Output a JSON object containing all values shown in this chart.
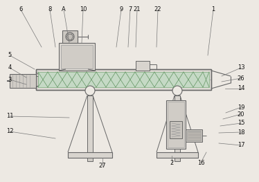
{
  "bg_color": "#ede9e3",
  "line_color": "#999999",
  "dark_color": "#666666",
  "thin_color": "#aaaaaa",
  "annotations": [
    [
      "6",
      30,
      14,
      60,
      68
    ],
    [
      "8",
      72,
      14,
      80,
      68
    ],
    [
      "A",
      92,
      14,
      100,
      62
    ],
    [
      "10",
      120,
      14,
      118,
      62
    ],
    [
      "9",
      175,
      14,
      168,
      68
    ],
    [
      "7",
      188,
      14,
      185,
      68
    ],
    [
      "21",
      198,
      14,
      196,
      68
    ],
    [
      "22",
      228,
      14,
      226,
      68
    ],
    [
      "1",
      308,
      14,
      300,
      80
    ],
    [
      "5",
      14,
      80,
      50,
      100
    ],
    [
      "4",
      14,
      98,
      38,
      112
    ],
    [
      "3",
      14,
      115,
      38,
      122
    ],
    [
      "11",
      14,
      168,
      100,
      170
    ],
    [
      "12",
      14,
      190,
      80,
      200
    ],
    [
      "13",
      348,
      98,
      320,
      110
    ],
    [
      "26",
      348,
      113,
      320,
      118
    ],
    [
      "14",
      348,
      128,
      325,
      128
    ],
    [
      "19",
      348,
      155,
      326,
      163
    ],
    [
      "20",
      348,
      165,
      322,
      172
    ],
    [
      "15",
      348,
      178,
      318,
      182
    ],
    [
      "18",
      348,
      191,
      316,
      192
    ],
    [
      "17",
      348,
      210,
      316,
      207
    ],
    [
      "2",
      248,
      235,
      248,
      225
    ],
    [
      "16",
      290,
      235,
      298,
      220
    ],
    [
      "27",
      148,
      240,
      148,
      228
    ]
  ]
}
